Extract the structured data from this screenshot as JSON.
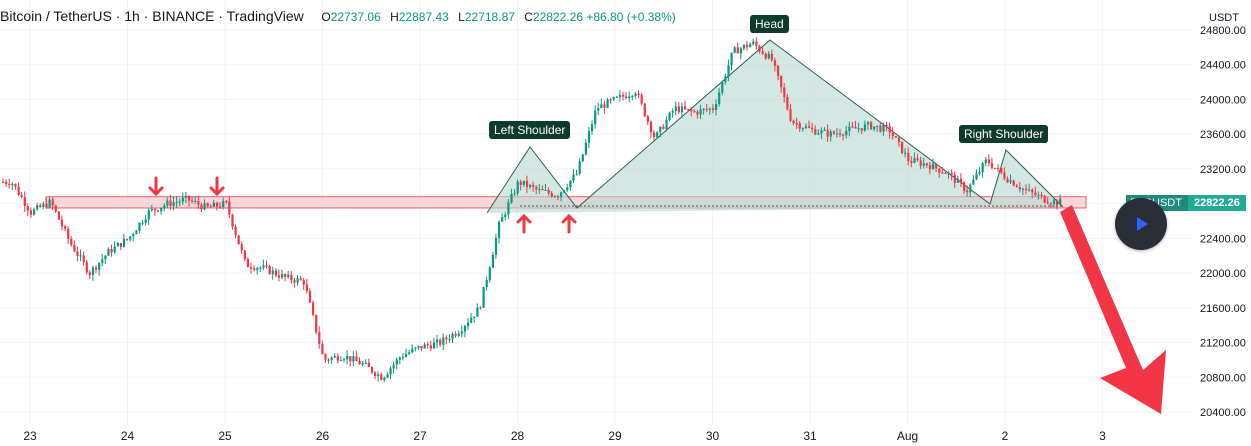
{
  "header": {
    "symbol": "Bitcoin / TetherUS · 1h · BINANCE · TradingView",
    "open_key": "O",
    "open": "22737.06",
    "high_key": "H",
    "high": "22887.43",
    "low_key": "L",
    "low": "22718.87",
    "close_key": "C",
    "close": "22822.26",
    "change": "+86.80 (+0.38%)"
  },
  "currency": "USDT",
  "price_tag": {
    "name": "BTCUSDT",
    "price": "22822.26"
  },
  "colors": {
    "up": "#089981",
    "down": "#f23645",
    "zone": "#f7c5c9",
    "pattern_fill": "#b8d8d1",
    "label_bg": "#0f3b2e"
  },
  "icons": {
    "play": "play-icon",
    "arrows": "arrow-icon"
  },
  "chart_data": {
    "type": "line",
    "title": "Bitcoin / TetherUS · 1h · BINANCE · TradingView",
    "x": [
      "23",
      "24",
      "25",
      "26",
      "27",
      "28",
      "29",
      "30",
      "31",
      "Aug",
      "2",
      "3"
    ],
    "yticks": [
      "24800.00",
      "24400.00",
      "24000.00",
      "23600.00",
      "23200.00",
      "22800.00",
      "22400.00",
      "22000.00",
      "21600.00",
      "21200.00",
      "20800.00",
      "20400.00"
    ],
    "ylim": [
      20250,
      24950
    ],
    "series": [
      {
        "x": [
          22.8,
          23.0,
          23.2,
          23.4,
          23.6,
          23.8,
          24.0,
          24.2,
          24.4,
          24.6,
          24.8,
          25.0,
          25.2,
          25.4,
          25.6,
          25.8,
          26.0,
          26.2,
          26.4,
          26.6,
          26.8,
          27.0,
          27.2,
          27.4,
          27.6,
          27.8,
          28.0,
          28.2,
          28.4,
          28.6,
          28.8,
          29.0,
          29.2,
          29.4,
          29.6,
          29.8,
          30.0,
          30.2,
          30.4,
          30.6,
          30.8,
          31.0,
          31.2,
          31.4,
          31.6,
          31.8,
          32.0,
          32.2,
          32.4,
          32.6,
          32.8,
          33.0,
          33.2,
          33.4,
          33.5
        ],
        "values": [
          23050,
          22700,
          22820,
          22350,
          22000,
          22250,
          22400,
          22700,
          22800,
          22850,
          22750,
          22800,
          22100,
          22050,
          21950,
          21900,
          21000,
          21050,
          20950,
          20800,
          21050,
          21150,
          21200,
          21350,
          21600,
          22550,
          23050,
          22950,
          22900,
          23150,
          23900,
          24000,
          24100,
          23550,
          23900,
          23850,
          23900,
          24550,
          24650,
          24450,
          23750,
          23650,
          23600,
          23650,
          23700,
          23650,
          23300,
          23250,
          23150,
          22950,
          23300,
          23100,
          22950,
          22850,
          22820
        ]
      }
    ],
    "support_zone": [
      22750,
      22880
    ],
    "annotations": [
      "Left Shoulder",
      "Head",
      "Right Shoulder"
    ]
  }
}
